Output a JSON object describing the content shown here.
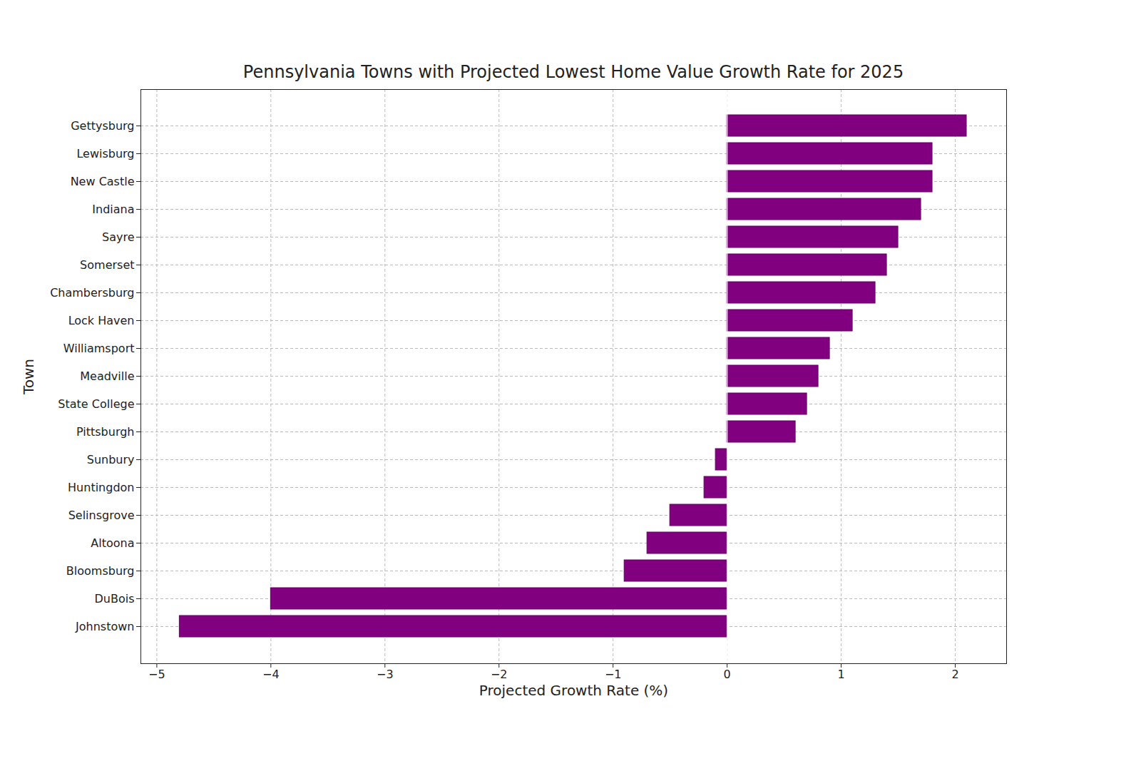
{
  "chart_data": {
    "type": "bar",
    "orientation": "horizontal",
    "title": "Pennsylvania Towns with Projected Lowest Home Value Growth Rate for 2025",
    "x_label": "Projected Growth Rate (%)",
    "y_label": "Town",
    "categories": [
      "Gettysburg",
      "Lewisburg",
      "New Castle",
      "Indiana",
      "Sayre",
      "Somerset",
      "Chambersburg",
      "Lock Haven",
      "Williamsport",
      "Meadville",
      "State College",
      "Pittsburgh",
      "Sunbury",
      "Huntingdon",
      "Selinsgrove",
      "Altoona",
      "Bloomsburg",
      "DuBois",
      "Johnstown"
    ],
    "values": [
      2.1,
      1.8,
      1.8,
      1.7,
      1.5,
      1.4,
      1.3,
      1.1,
      0.9,
      0.8,
      0.7,
      0.6,
      -0.1,
      -0.2,
      -0.5,
      -0.7,
      -0.9,
      -4.0,
      -4.8
    ],
    "color": "#800080",
    "xlim": [
      -5.14,
      2.45
    ],
    "xticks": [
      -5,
      -4,
      -3,
      -2,
      -1,
      0,
      1,
      2
    ],
    "grid": true
  }
}
